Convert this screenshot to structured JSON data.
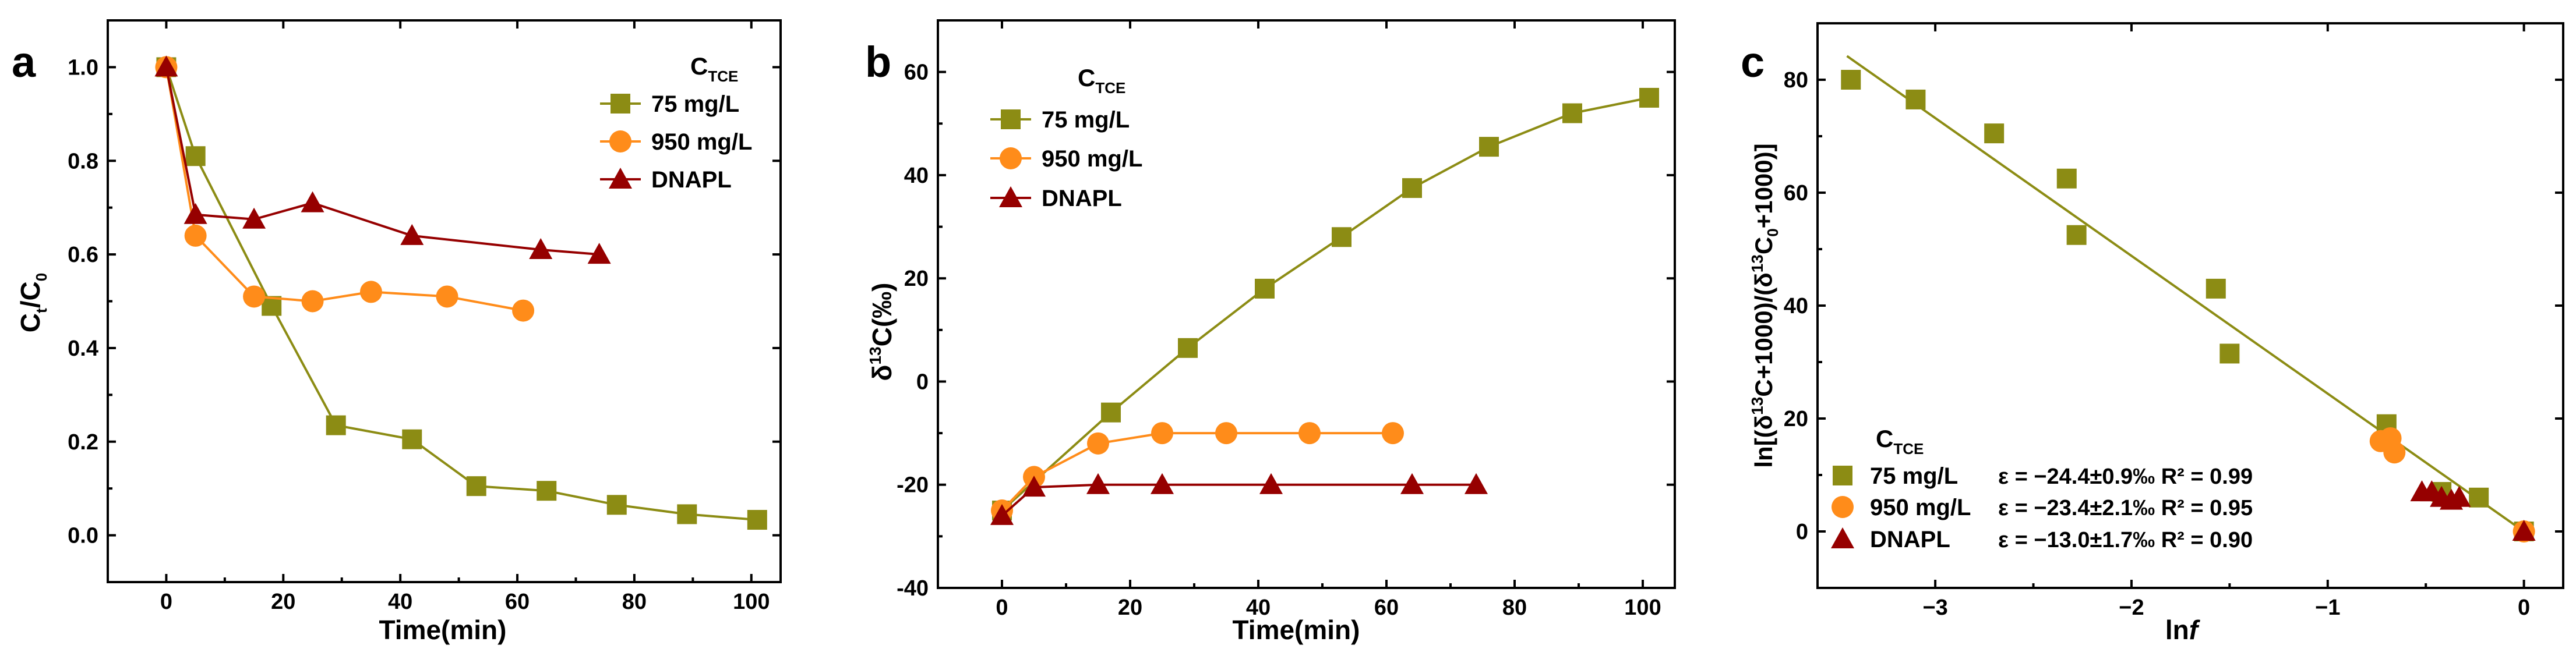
{
  "colors": {
    "s75": "#8c8c14",
    "s950": "#ff8c1a",
    "dnapl": "#960000",
    "fit": "#8c8c14"
  },
  "chart_data": [
    {
      "panel": "a",
      "type": "line",
      "xlabel": "Time(min)",
      "ylabel_main": "C",
      "ylabel_sub1": "t",
      "ylabel_slash": "/C",
      "ylabel_sub2": "0",
      "xlim": [
        -10,
        105
      ],
      "ylim": [
        -0.1,
        1.1
      ],
      "xticks": [
        0,
        20,
        40,
        60,
        80,
        100
      ],
      "xtick_labels": [
        "0",
        "20",
        "40",
        "60",
        "80",
        "100"
      ],
      "yticks": [
        0.0,
        0.2,
        0.4,
        0.6,
        0.8,
        1.0
      ],
      "ytick_labels": [
        "0.0",
        "0.2",
        "0.4",
        "0.6",
        "0.8",
        "1.0"
      ],
      "legend_title_main": "C",
      "legend_title_sub": "TCE",
      "legend_location": "top-right",
      "series": [
        {
          "name": "75 mg/L",
          "marker": "square",
          "color_key": "s75",
          "x": [
            0,
            5,
            18,
            29,
            42,
            53,
            65,
            77,
            89,
            101
          ],
          "y": [
            1.0,
            0.81,
            0.49,
            0.235,
            0.205,
            0.105,
            0.095,
            0.065,
            0.045,
            0.033
          ]
        },
        {
          "name": "950 mg/L",
          "marker": "circle",
          "color_key": "s950",
          "x": [
            0,
            5,
            15,
            25,
            35,
            48,
            61
          ],
          "y": [
            1.0,
            0.64,
            0.51,
            0.5,
            0.52,
            0.51,
            0.48
          ]
        },
        {
          "name": "DNAPL",
          "marker": "triangle",
          "color_key": "dnapl",
          "x": [
            0,
            5,
            15,
            25,
            42,
            64,
            74
          ],
          "y": [
            1.0,
            0.685,
            0.675,
            0.71,
            0.64,
            0.61,
            0.6
          ]
        }
      ]
    },
    {
      "panel": "b",
      "type": "line",
      "xlabel": "Time(min)",
      "ylabel_pre": "δ",
      "ylabel_sup": "13",
      "ylabel_post": "C(‰)",
      "xlim": [
        -10,
        105
      ],
      "ylim": [
        -40,
        70
      ],
      "xticks": [
        0,
        20,
        40,
        60,
        80,
        100
      ],
      "xtick_labels": [
        "0",
        "20",
        "40",
        "60",
        "80",
        "100"
      ],
      "yticks": [
        -40,
        -20,
        0,
        20,
        40,
        60
      ],
      "ytick_labels": [
        "-40",
        "-20",
        "0",
        "20",
        "40",
        "60"
      ],
      "legend_title_main": "C",
      "legend_title_sub": "TCE",
      "legend_location": "top-left",
      "series": [
        {
          "name": "75 mg/L",
          "marker": "square",
          "color_key": "s75",
          "x": [
            0,
            17,
            29,
            41,
            53,
            64,
            76,
            89,
            101
          ],
          "y": [
            -25,
            -6,
            6.5,
            18,
            28,
            37.5,
            45.5,
            52,
            55
          ]
        },
        {
          "name": "950 mg/L",
          "marker": "circle",
          "color_key": "s950",
          "x": [
            0,
            5,
            15,
            25,
            35,
            48,
            61
          ],
          "y": [
            -25,
            -18.5,
            -12,
            -10,
            -10,
            -10,
            -10
          ]
        },
        {
          "name": "DNAPL",
          "marker": "triangle",
          "color_key": "dnapl",
          "x": [
            0,
            5,
            15,
            25,
            42,
            64,
            74
          ],
          "y": [
            -26,
            -20.5,
            -20,
            -20,
            -20,
            -20,
            -20
          ]
        }
      ]
    },
    {
      "panel": "c",
      "type": "scatter",
      "xlabel_main": "ln",
      "xlabel_italic": "f",
      "ylabel_a": "ln[(δ",
      "ylabel_b": "13",
      "ylabel_c": "C+1000)/(δ",
      "ylabel_d": "13",
      "ylabel_e": "C",
      "ylabel_f": "0",
      "ylabel_g": "+1000)]",
      "xlim": [
        -3.6,
        0.2
      ],
      "ylim": [
        -10,
        90
      ],
      "xticks": [
        -3,
        -2,
        -1,
        0
      ],
      "xtick_labels": [
        "−3",
        "−2",
        "−1",
        "0"
      ],
      "yticks": [
        0,
        20,
        40,
        60,
        80
      ],
      "ytick_labels": [
        "0",
        "20",
        "40",
        "60",
        "80"
      ],
      "legend_title_main": "C",
      "legend_title_sub": "TCE",
      "legend_location": "bottom-left",
      "fit_line": {
        "x": [
          -3.45,
          0.0
        ],
        "y": [
          84.2,
          0.0
        ]
      },
      "series": [
        {
          "name": "75 mg/L",
          "marker": "square",
          "color_key": "s75",
          "stats": "ε = −24.4±0.9‰ R² = 0.99",
          "x": [
            -3.43,
            -3.1,
            -2.7,
            -2.33,
            -2.28,
            -1.57,
            -1.5,
            -0.7,
            -0.42,
            -0.23,
            0.0
          ],
          "y": [
            80,
            76.5,
            70.5,
            62.5,
            52.5,
            43,
            31.5,
            19,
            7,
            6,
            0
          ]
        },
        {
          "name": "950 mg/L",
          "marker": "circle",
          "color_key": "s950",
          "stats": "ε = −23.4±2.1‰ R² = 0.95",
          "x": [
            -0.73,
            -0.68,
            -0.66,
            0.0
          ],
          "y": [
            16,
            16.5,
            14,
            0
          ]
        },
        {
          "name": "DNAPL",
          "marker": "triangle",
          "color_key": "dnapl",
          "stats": "ε = −13.0±1.7‰ R² = 0.90",
          "x": [
            -0.52,
            -0.47,
            -0.42,
            -0.37,
            -0.33,
            0.0
          ],
          "y": [
            7,
            7,
            6,
            5.5,
            6,
            0
          ]
        }
      ]
    }
  ]
}
